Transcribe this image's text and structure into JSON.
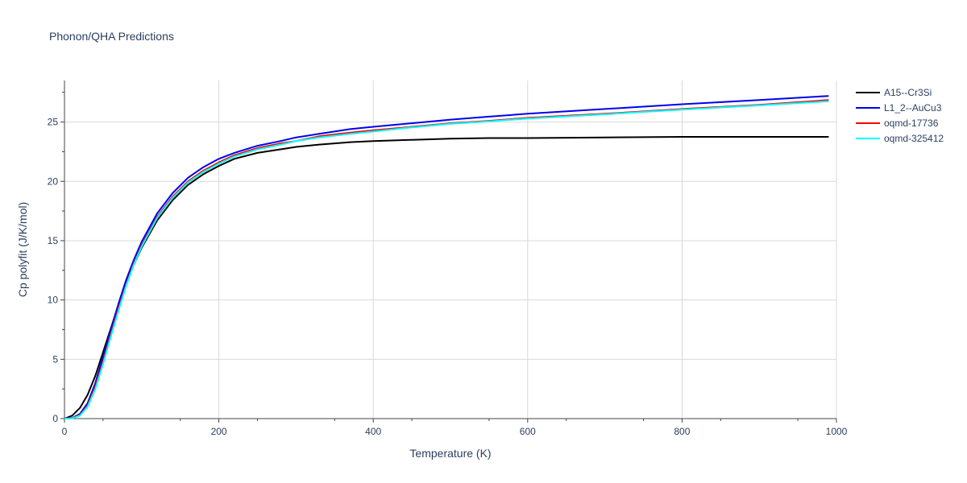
{
  "chart_data": {
    "type": "line",
    "title": "Phonon/QHA Predictions",
    "xlabel": "Temperature (K)",
    "ylabel": "Cp polyfit (J/K/mol)",
    "xlim": [
      0,
      1000
    ],
    "ylim": [
      0,
      28.5
    ],
    "x_ticks": [
      0,
      200,
      400,
      600,
      800,
      1000
    ],
    "y_ticks": [
      0,
      5,
      10,
      15,
      20,
      25
    ],
    "grid": true,
    "legend_position": "top-right",
    "series": [
      {
        "name": "A15--Cr3Si",
        "color": "#000000",
        "x": [
          0,
          10,
          20,
          30,
          40,
          50,
          60,
          70,
          80,
          90,
          100,
          120,
          140,
          160,
          180,
          200,
          220,
          250,
          280,
          300,
          330,
          370,
          400,
          450,
          500,
          550,
          600,
          700,
          800,
          900,
          990
        ],
        "y": [
          0,
          0.25,
          0.9,
          2.0,
          3.6,
          5.6,
          7.6,
          9.6,
          11.4,
          13.0,
          14.4,
          16.7,
          18.4,
          19.7,
          20.6,
          21.3,
          21.9,
          22.4,
          22.7,
          22.9,
          23.1,
          23.3,
          23.4,
          23.5,
          23.6,
          23.65,
          23.65,
          23.7,
          23.75,
          23.75,
          23.75
        ]
      },
      {
        "name": "L1_2--AuCu3",
        "color": "#0000ee",
        "x": [
          0,
          10,
          20,
          30,
          40,
          50,
          60,
          70,
          80,
          90,
          100,
          120,
          140,
          160,
          180,
          200,
          220,
          250,
          280,
          300,
          330,
          370,
          400,
          450,
          500,
          550,
          600,
          700,
          800,
          900,
          990
        ],
        "y": [
          0,
          0.05,
          0.4,
          1.3,
          3.0,
          5.2,
          7.5,
          9.7,
          11.7,
          13.4,
          14.9,
          17.3,
          19.0,
          20.3,
          21.2,
          21.9,
          22.4,
          23.0,
          23.4,
          23.7,
          24.0,
          24.4,
          24.6,
          24.9,
          25.2,
          25.45,
          25.7,
          26.1,
          26.5,
          26.85,
          27.2
        ]
      },
      {
        "name": "oqmd-17736",
        "color": "#ff0000",
        "x": [
          0,
          10,
          20,
          30,
          40,
          50,
          60,
          70,
          80,
          90,
          100,
          120,
          140,
          160,
          180,
          200,
          220,
          250,
          280,
          300,
          330,
          370,
          400,
          450,
          500,
          550,
          600,
          700,
          800,
          900,
          990
        ],
        "y": [
          0,
          0.03,
          0.3,
          1.1,
          2.7,
          4.8,
          7.1,
          9.3,
          11.3,
          13.1,
          14.6,
          17.0,
          18.7,
          20.0,
          20.9,
          21.6,
          22.2,
          22.8,
          23.2,
          23.4,
          23.8,
          24.1,
          24.3,
          24.6,
          24.9,
          25.1,
          25.35,
          25.7,
          26.1,
          26.45,
          26.85
        ]
      },
      {
        "name": "oqmd-325412",
        "color": "#00ffff",
        "x": [
          0,
          10,
          20,
          30,
          40,
          50,
          60,
          70,
          80,
          90,
          100,
          120,
          140,
          160,
          180,
          200,
          220,
          250,
          280,
          300,
          330,
          370,
          400,
          450,
          500,
          550,
          600,
          700,
          800,
          900,
          990
        ],
        "y": [
          0,
          0.02,
          0.25,
          1.0,
          2.5,
          4.6,
          6.9,
          9.1,
          11.2,
          13.0,
          14.5,
          16.9,
          18.6,
          19.9,
          20.8,
          21.5,
          22.1,
          22.7,
          23.1,
          23.4,
          23.7,
          24.0,
          24.2,
          24.55,
          24.85,
          25.05,
          25.3,
          25.65,
          26.05,
          26.4,
          26.75
        ]
      }
    ]
  }
}
